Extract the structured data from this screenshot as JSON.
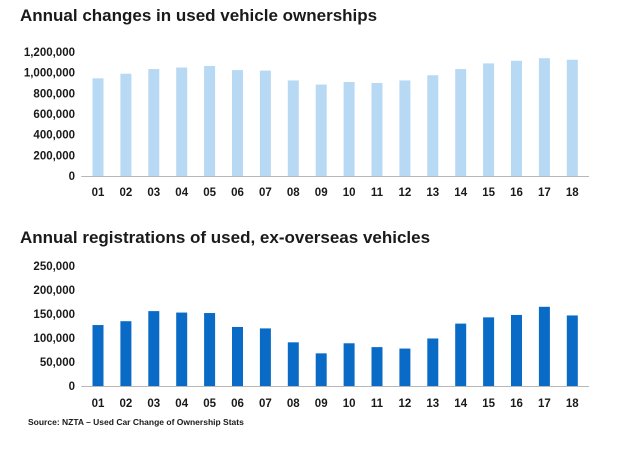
{
  "chart_data": [
    {
      "type": "bar",
      "title": "Annual changes in used vehicle ownerships",
      "categories": [
        "01",
        "02",
        "03",
        "04",
        "05",
        "06",
        "07",
        "08",
        "09",
        "10",
        "11",
        "12",
        "13",
        "14",
        "15",
        "16",
        "17",
        "18"
      ],
      "values": [
        945000,
        990000,
        1035000,
        1050000,
        1065000,
        1025000,
        1020000,
        925000,
        885000,
        910000,
        900000,
        925000,
        975000,
        1035000,
        1090000,
        1115000,
        1140000,
        1125000
      ],
      "ylim": [
        0,
        1200000
      ],
      "yticks": [
        "0",
        "200,000",
        "400,000",
        "600,000",
        "800,000",
        "1,000,000",
        "1,200,000"
      ],
      "color": "#b8d9f3",
      "grid": false
    },
    {
      "type": "bar",
      "title": "Annual registrations of used, ex-overseas vehicles",
      "categories": [
        "01",
        "02",
        "03",
        "04",
        "05",
        "06",
        "07",
        "08",
        "09",
        "10",
        "11",
        "12",
        "13",
        "14",
        "15",
        "16",
        "17",
        "18"
      ],
      "values": [
        127000,
        135000,
        156000,
        153000,
        152000,
        123000,
        120000,
        91000,
        68000,
        89000,
        81000,
        78000,
        99000,
        130000,
        143000,
        148000,
        165000,
        147000
      ],
      "ylim": [
        0,
        250000
      ],
      "yticks": [
        "0",
        "50,000",
        "100,000",
        "150,000",
        "200,000",
        "250,000"
      ],
      "color": "#0a6bc6",
      "grid": false
    }
  ],
  "source": "Source: NZTA – Used Car Change of Ownership  Stats"
}
